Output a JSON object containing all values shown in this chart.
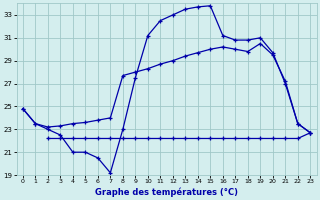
{
  "title": "Graphe des températures (°C)",
  "background_color": "#d4eeee",
  "grid_color": "#a0c8c8",
  "line_color": "#0000aa",
  "ylim": [
    19,
    34
  ],
  "xlim": [
    -0.5,
    23.5
  ],
  "yticks": [
    19,
    21,
    23,
    25,
    27,
    29,
    31,
    33
  ],
  "xticks": [
    0,
    1,
    2,
    3,
    4,
    5,
    6,
    7,
    8,
    9,
    10,
    11,
    12,
    13,
    14,
    15,
    16,
    17,
    18,
    19,
    20,
    21,
    22,
    23
  ],
  "series1_x": [
    0,
    1,
    2,
    3,
    4,
    5,
    6,
    7,
    8,
    9,
    10,
    11,
    12,
    13,
    14,
    15,
    16,
    17,
    18,
    19,
    20,
    21,
    22,
    23
  ],
  "series1_y": [
    24.8,
    23.5,
    23.0,
    22.5,
    21.0,
    21.0,
    20.5,
    19.2,
    23.0,
    27.5,
    31.2,
    32.5,
    33.0,
    33.5,
    33.7,
    33.8,
    31.2,
    30.8,
    30.8,
    31.0,
    29.7,
    27.0,
    23.5,
    22.7
  ],
  "series2_x": [
    0,
    1,
    2,
    3,
    4,
    5,
    6,
    7,
    8,
    9,
    10,
    11,
    12,
    13,
    14,
    15,
    16,
    17,
    18,
    19,
    20,
    21,
    22,
    23
  ],
  "series2_y": [
    24.8,
    23.5,
    23.2,
    23.3,
    23.5,
    23.6,
    23.8,
    24.0,
    27.7,
    28.0,
    28.3,
    28.7,
    29.0,
    29.4,
    29.7,
    30.0,
    30.2,
    30.0,
    29.8,
    30.5,
    29.5,
    27.2,
    23.5,
    22.7
  ],
  "series3_x": [
    2,
    3,
    4,
    5,
    6,
    7,
    8,
    9,
    10,
    11,
    12,
    13,
    14,
    15,
    16,
    17,
    18,
    19,
    20,
    21,
    22,
    23
  ],
  "series3_y": [
    22.2,
    22.2,
    22.2,
    22.2,
    22.2,
    22.2,
    22.2,
    22.2,
    22.2,
    22.2,
    22.2,
    22.2,
    22.2,
    22.2,
    22.2,
    22.2,
    22.2,
    22.2,
    22.2,
    22.2,
    22.2,
    22.7
  ]
}
